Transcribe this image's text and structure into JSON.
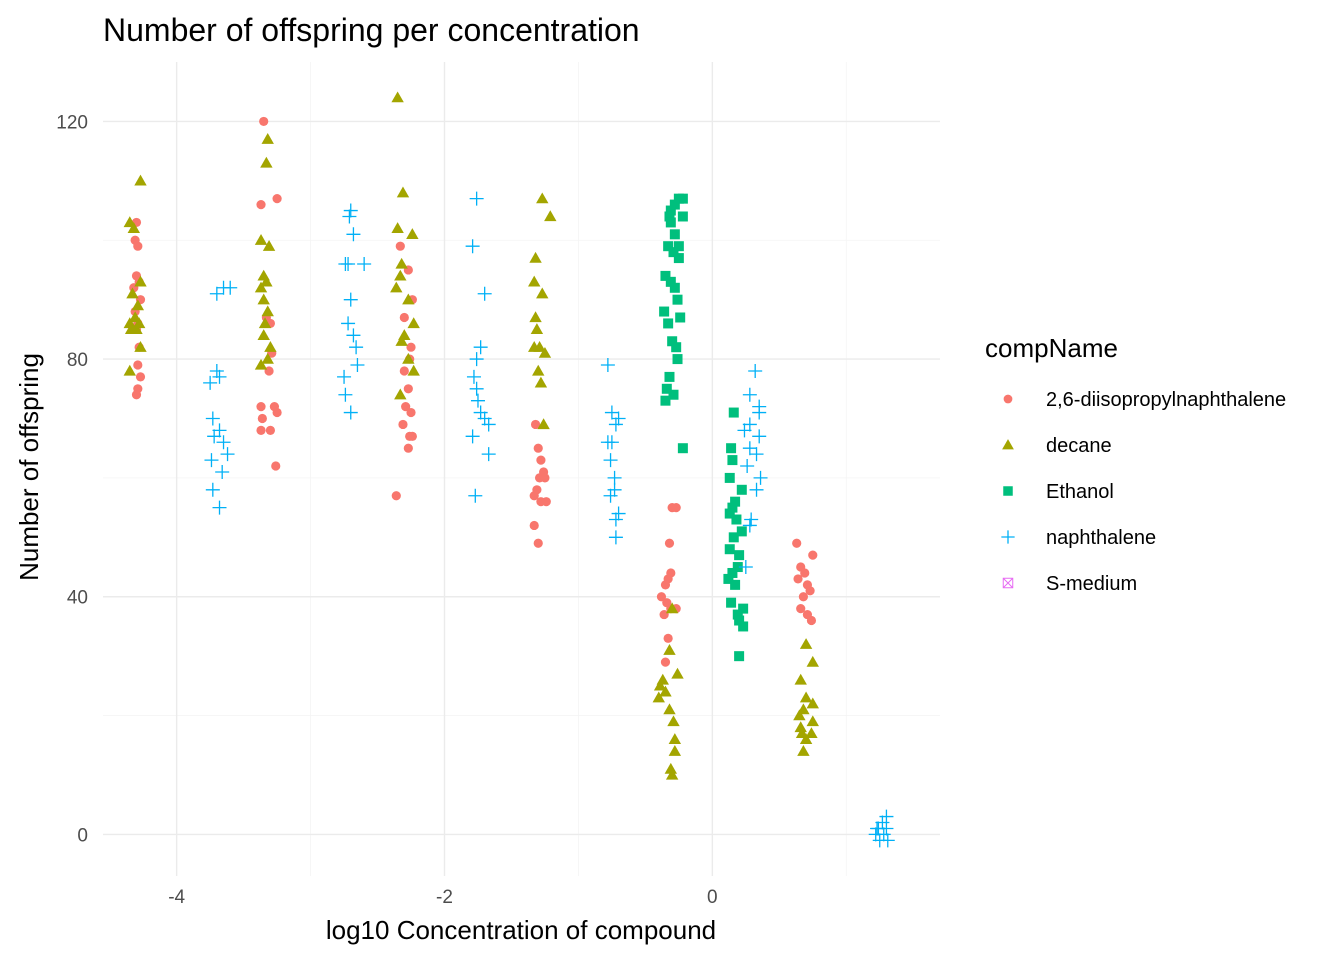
{
  "chart_data": {
    "type": "scatter",
    "title": "Number of offspring per concentration",
    "xlabel": "log10 Concentration of compound",
    "ylabel": "Number of offspring",
    "xlim": [
      -4.55,
      1.7
    ],
    "ylim": [
      -7,
      130
    ],
    "x_ticks": [
      -4,
      -2,
      0
    ],
    "x_tick_labels": [
      "-4",
      "-2",
      "0"
    ],
    "y_ticks": [
      0,
      40,
      80,
      120
    ],
    "y_tick_labels": [
      "0",
      "40",
      "80",
      "120"
    ],
    "grid": true,
    "legend": {
      "title": "compName",
      "position": "right"
    },
    "series": [
      {
        "name": "2,6-diisopropylnaphthalene",
        "color": "#F8766D",
        "shape": "circle",
        "points": [
          [
            -4.3,
            103
          ],
          [
            -4.31,
            100
          ],
          [
            -4.29,
            99
          ],
          [
            -4.3,
            94
          ],
          [
            -4.28,
            93
          ],
          [
            -4.32,
            92
          ],
          [
            -4.27,
            90
          ],
          [
            -4.31,
            88
          ],
          [
            -4.29,
            86
          ],
          [
            -4.3,
            85
          ],
          [
            -4.28,
            82
          ],
          [
            -4.29,
            79
          ],
          [
            -4.27,
            77
          ],
          [
            -4.29,
            75
          ],
          [
            -4.3,
            74
          ],
          [
            -3.35,
            120
          ],
          [
            -3.37,
            106
          ],
          [
            -3.25,
            107
          ],
          [
            -3.33,
            87
          ],
          [
            -3.3,
            86
          ],
          [
            -3.29,
            81
          ],
          [
            -3.31,
            78
          ],
          [
            -3.37,
            72
          ],
          [
            -3.27,
            72
          ],
          [
            -3.25,
            71
          ],
          [
            -3.36,
            70
          ],
          [
            -3.3,
            68
          ],
          [
            -3.37,
            68
          ],
          [
            -3.26,
            62
          ],
          [
            -2.33,
            99
          ],
          [
            -2.27,
            95
          ],
          [
            -2.24,
            90
          ],
          [
            -2.3,
            87
          ],
          [
            -2.25,
            82
          ],
          [
            -2.26,
            80
          ],
          [
            -2.3,
            78
          ],
          [
            -2.27,
            75
          ],
          [
            -2.29,
            72
          ],
          [
            -2.25,
            71
          ],
          [
            -2.31,
            69
          ],
          [
            -2.26,
            67
          ],
          [
            -2.24,
            67
          ],
          [
            -2.27,
            65
          ],
          [
            -2.36,
            57
          ],
          [
            -1.32,
            69
          ],
          [
            -1.3,
            65
          ],
          [
            -1.28,
            63
          ],
          [
            -1.26,
            61
          ],
          [
            -1.29,
            60
          ],
          [
            -1.25,
            60
          ],
          [
            -1.31,
            58
          ],
          [
            -1.33,
            57
          ],
          [
            -1.28,
            56
          ],
          [
            -1.24,
            56
          ],
          [
            -1.33,
            52
          ],
          [
            -1.3,
            49
          ],
          [
            -0.27,
            55
          ],
          [
            -0.3,
            55
          ],
          [
            -0.32,
            49
          ],
          [
            -0.31,
            44
          ],
          [
            -0.33,
            43
          ],
          [
            -0.35,
            42
          ],
          [
            -0.38,
            40
          ],
          [
            -0.34,
            39
          ],
          [
            -0.31,
            38
          ],
          [
            -0.27,
            38
          ],
          [
            -0.36,
            37
          ],
          [
            -0.33,
            33
          ],
          [
            -0.35,
            29
          ],
          [
            0.63,
            49
          ],
          [
            0.75,
            47
          ],
          [
            0.66,
            45
          ],
          [
            0.69,
            44
          ],
          [
            0.64,
            43
          ],
          [
            0.71,
            42
          ],
          [
            0.73,
            41
          ],
          [
            0.68,
            40
          ],
          [
            0.66,
            38
          ],
          [
            0.71,
            37
          ],
          [
            0.74,
            36
          ]
        ]
      },
      {
        "name": "decane",
        "color": "#A3A500",
        "shape": "triangle",
        "points": [
          [
            -4.27,
            110
          ],
          [
            -4.35,
            103
          ],
          [
            -4.32,
            102
          ],
          [
            -4.27,
            93
          ],
          [
            -4.33,
            91
          ],
          [
            -4.29,
            89
          ],
          [
            -4.31,
            87
          ],
          [
            -4.28,
            86
          ],
          [
            -4.35,
            86
          ],
          [
            -4.34,
            85
          ],
          [
            -4.3,
            85
          ],
          [
            -4.27,
            82
          ],
          [
            -4.35,
            78
          ],
          [
            -3.32,
            117
          ],
          [
            -3.33,
            113
          ],
          [
            -3.37,
            100
          ],
          [
            -3.31,
            99
          ],
          [
            -3.35,
            94
          ],
          [
            -3.33,
            93
          ],
          [
            -3.37,
            92
          ],
          [
            -3.35,
            90
          ],
          [
            -3.32,
            88
          ],
          [
            -3.34,
            86
          ],
          [
            -3.35,
            84
          ],
          [
            -3.3,
            82
          ],
          [
            -3.32,
            80
          ],
          [
            -3.37,
            79
          ],
          [
            -2.35,
            124
          ],
          [
            -2.31,
            108
          ],
          [
            -2.35,
            102
          ],
          [
            -2.24,
            101
          ],
          [
            -2.32,
            96
          ],
          [
            -2.33,
            94
          ],
          [
            -2.36,
            92
          ],
          [
            -2.27,
            90
          ],
          [
            -2.23,
            86
          ],
          [
            -2.3,
            84
          ],
          [
            -2.32,
            83
          ],
          [
            -2.27,
            80
          ],
          [
            -2.23,
            78
          ],
          [
            -2.33,
            74
          ],
          [
            -1.27,
            107
          ],
          [
            -1.21,
            104
          ],
          [
            -1.32,
            97
          ],
          [
            -1.33,
            93
          ],
          [
            -1.27,
            91
          ],
          [
            -1.32,
            87
          ],
          [
            -1.31,
            85
          ],
          [
            -1.33,
            82
          ],
          [
            -1.29,
            82
          ],
          [
            -1.25,
            81
          ],
          [
            -1.3,
            78
          ],
          [
            -1.28,
            76
          ],
          [
            -1.26,
            69
          ],
          [
            -0.3,
            38
          ],
          [
            -0.32,
            31
          ],
          [
            -0.26,
            27
          ],
          [
            -0.37,
            26
          ],
          [
            -0.39,
            25
          ],
          [
            -0.35,
            24
          ],
          [
            -0.4,
            23
          ],
          [
            -0.32,
            21
          ],
          [
            -0.29,
            19
          ],
          [
            -0.28,
            16
          ],
          [
            -0.28,
            14
          ],
          [
            -0.31,
            11
          ],
          [
            -0.3,
            10
          ],
          [
            0.7,
            32
          ],
          [
            0.75,
            29
          ],
          [
            0.66,
            26
          ],
          [
            0.7,
            23
          ],
          [
            0.75,
            22
          ],
          [
            0.68,
            21
          ],
          [
            0.65,
            20
          ],
          [
            0.75,
            19
          ],
          [
            0.66,
            18
          ],
          [
            0.74,
            17
          ],
          [
            0.67,
            17
          ],
          [
            0.7,
            16
          ],
          [
            0.68,
            14
          ]
        ]
      },
      {
        "name": "Ethanol",
        "color": "#00BF7D",
        "shape": "square",
        "points": [
          [
            -0.22,
            107
          ],
          [
            -0.25,
            107
          ],
          [
            -0.28,
            106
          ],
          [
            -0.31,
            105
          ],
          [
            -0.22,
            104
          ],
          [
            -0.32,
            104
          ],
          [
            -0.31,
            103
          ],
          [
            -0.28,
            101
          ],
          [
            -0.25,
            99
          ],
          [
            -0.33,
            99
          ],
          [
            -0.29,
            98
          ],
          [
            -0.25,
            97
          ],
          [
            -0.35,
            94
          ],
          [
            -0.31,
            93
          ],
          [
            -0.28,
            92
          ],
          [
            -0.26,
            90
          ],
          [
            -0.36,
            88
          ],
          [
            -0.24,
            87
          ],
          [
            -0.33,
            86
          ],
          [
            -0.3,
            83
          ],
          [
            -0.27,
            82
          ],
          [
            -0.26,
            80
          ],
          [
            -0.32,
            77
          ],
          [
            -0.34,
            75
          ],
          [
            -0.29,
            74
          ],
          [
            -0.35,
            73
          ],
          [
            -0.22,
            65
          ],
          [
            0.16,
            71
          ],
          [
            0.14,
            65
          ],
          [
            0.15,
            63
          ],
          [
            0.13,
            60
          ],
          [
            0.22,
            58
          ],
          [
            0.17,
            56
          ],
          [
            0.15,
            55
          ],
          [
            0.13,
            54
          ],
          [
            0.18,
            53
          ],
          [
            0.22,
            51
          ],
          [
            0.16,
            50
          ],
          [
            0.13,
            48
          ],
          [
            0.2,
            47
          ],
          [
            0.19,
            45
          ],
          [
            0.15,
            44
          ],
          [
            0.12,
            43
          ],
          [
            0.17,
            42
          ],
          [
            0.14,
            39
          ],
          [
            0.23,
            38
          ],
          [
            0.19,
            37
          ],
          [
            0.2,
            36
          ],
          [
            0.23,
            35
          ],
          [
            0.2,
            30
          ]
        ]
      },
      {
        "name": "naphthalene",
        "color": "#00B0F6",
        "shape": "plus",
        "points": [
          [
            -3.65,
            92
          ],
          [
            -3.7,
            91
          ],
          [
            -3.6,
            92
          ],
          [
            -3.7,
            78
          ],
          [
            -3.68,
            77
          ],
          [
            -3.75,
            76
          ],
          [
            -3.73,
            70
          ],
          [
            -3.68,
            68
          ],
          [
            -3.72,
            67
          ],
          [
            -3.65,
            66
          ],
          [
            -3.62,
            64
          ],
          [
            -3.74,
            63
          ],
          [
            -3.66,
            61
          ],
          [
            -3.73,
            58
          ],
          [
            -3.68,
            55
          ],
          [
            -2.7,
            105
          ],
          [
            -2.71,
            104
          ],
          [
            -2.68,
            101
          ],
          [
            -2.74,
            96
          ],
          [
            -2.72,
            96
          ],
          [
            -2.6,
            96
          ],
          [
            -2.7,
            90
          ],
          [
            -2.72,
            86
          ],
          [
            -2.68,
            84
          ],
          [
            -2.66,
            82
          ],
          [
            -2.65,
            79
          ],
          [
            -2.75,
            77
          ],
          [
            -2.74,
            74
          ],
          [
            -2.7,
            71
          ],
          [
            -1.76,
            107
          ],
          [
            -1.79,
            99
          ],
          [
            -1.7,
            91
          ],
          [
            -1.73,
            82
          ],
          [
            -1.76,
            80
          ],
          [
            -1.78,
            77
          ],
          [
            -1.76,
            75
          ],
          [
            -1.75,
            73
          ],
          [
            -1.73,
            71
          ],
          [
            -1.7,
            70
          ],
          [
            -1.67,
            69
          ],
          [
            -1.79,
            67
          ],
          [
            -1.67,
            64
          ],
          [
            -1.77,
            57
          ],
          [
            -0.78,
            79
          ],
          [
            -0.75,
            71
          ],
          [
            -0.7,
            70
          ],
          [
            -0.72,
            69
          ],
          [
            -0.75,
            66
          ],
          [
            -0.78,
            66
          ],
          [
            -0.76,
            63
          ],
          [
            -0.73,
            60
          ],
          [
            -0.73,
            58
          ],
          [
            -0.76,
            57
          ],
          [
            -0.7,
            54
          ],
          [
            -0.72,
            53
          ],
          [
            -0.72,
            50
          ],
          [
            0.32,
            78
          ],
          [
            0.28,
            74
          ],
          [
            0.35,
            72
          ],
          [
            0.35,
            71
          ],
          [
            0.28,
            69
          ],
          [
            0.24,
            68
          ],
          [
            0.35,
            67
          ],
          [
            0.28,
            65
          ],
          [
            0.33,
            64
          ],
          [
            0.26,
            62
          ],
          [
            0.36,
            60
          ],
          [
            0.33,
            58
          ],
          [
            0.29,
            53
          ],
          [
            0.28,
            52
          ],
          [
            0.25,
            45
          ],
          [
            1.3,
            3
          ],
          [
            1.27,
            2
          ],
          [
            1.3,
            1
          ],
          [
            1.24,
            1
          ],
          [
            1.22,
            0
          ],
          [
            1.28,
            0
          ],
          [
            1.25,
            -1
          ],
          [
            1.31,
            -1
          ],
          [
            1.23,
            1
          ]
        ]
      },
      {
        "name": "S-medium",
        "color": "#E76BF3",
        "shape": "square-cross",
        "points": []
      }
    ]
  }
}
